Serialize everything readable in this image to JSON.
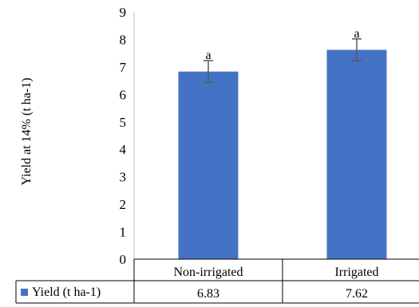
{
  "chart_data": {
    "type": "bar",
    "categories": [
      "Non-irrigated",
      "Irrigated"
    ],
    "series": [
      {
        "name": "Yield (t ha-1)",
        "values": [
          6.83,
          7.62
        ],
        "error": [
          0.4,
          0.4
        ],
        "letters": [
          "a",
          "a"
        ],
        "data_labels": [
          "6.83",
          "7.62"
        ]
      }
    ],
    "ylabel": "Yield at 14% (t ha-1)",
    "ylim": [
      0,
      9
    ],
    "yticks": [
      "0",
      "1",
      "2",
      "3",
      "4",
      "5",
      "6",
      "7",
      "8",
      "9"
    ],
    "grid": false,
    "data_table": true,
    "bar_color": "#4472C4",
    "error_color": "#595959"
  }
}
